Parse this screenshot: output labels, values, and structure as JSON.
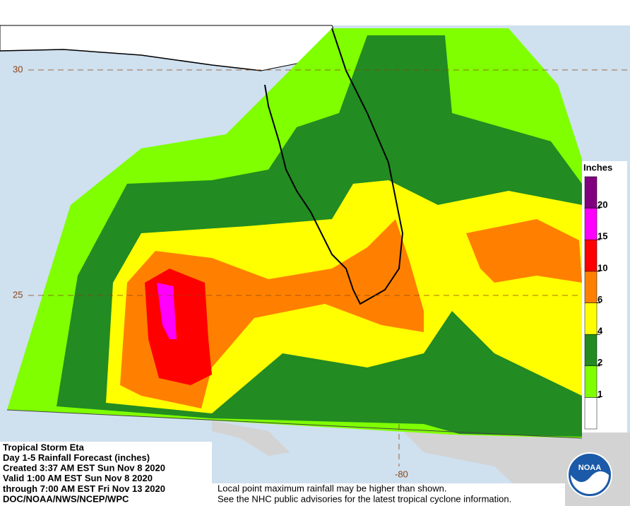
{
  "map": {
    "title_lines": [
      "Tropical Storm Eta",
      "Day 1-5 Rainfall Forecast (inches)",
      "Created 3:37 AM EST Sun Nov 8 2020",
      "Valid 1:00 AM EST Sun Nov 8 2020",
      "through 7:00 AM EST Fri Nov 13 2020",
      "DOC/NOAA/NWS/NCEP/WPC"
    ],
    "legend": {
      "title": "Inches",
      "ticks": [
        1,
        2,
        4,
        6,
        10,
        15,
        20
      ],
      "colors": [
        "#ffffff",
        "#7fff00",
        "#228b22",
        "#ffff00",
        "#ff8000",
        "#ff0000",
        "#ff00ff",
        "#800080"
      ]
    },
    "lat_labels": [
      30,
      25
    ],
    "lon_labels": [
      -80
    ],
    "notes": [
      "Local point maximum rainfall may be higher than shown.",
      "See the NHC public advisories for the latest tropical cyclone information."
    ],
    "logo": "NOAA"
  }
}
